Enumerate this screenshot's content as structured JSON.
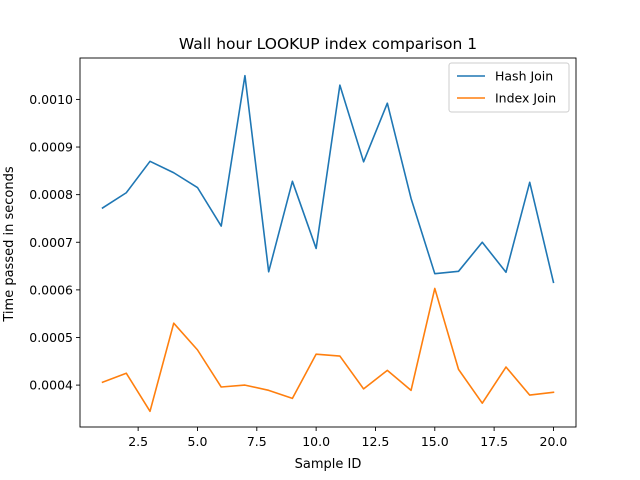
{
  "chart_data": {
    "type": "line",
    "title": "Wall hour LOOKUP index comparison 1",
    "xlabel": "Sample ID",
    "ylabel": "Time passed in seconds",
    "xlim": [
      0.05,
      20.95
    ],
    "ylim": [
      0.000312,
      0.001087
    ],
    "xticks": [
      2.5,
      5.0,
      7.5,
      10.0,
      12.5,
      15.0,
      17.5,
      20.0
    ],
    "xtick_labels": [
      "2.5",
      "5.0",
      "7.5",
      "10.0",
      "12.5",
      "15.0",
      "17.5",
      "20.0"
    ],
    "yticks": [
      0.0004,
      0.0005,
      0.0006,
      0.0007,
      0.0008,
      0.0009,
      0.001
    ],
    "ytick_labels": [
      "0.0004",
      "0.0005",
      "0.0006",
      "0.0007",
      "0.0008",
      "0.0009",
      "0.0010"
    ],
    "grid": false,
    "legend_position": "top-right",
    "x": [
      1,
      2,
      3,
      4,
      5,
      6,
      7,
      8,
      9,
      10,
      11,
      12,
      13,
      14,
      15,
      16,
      17,
      18,
      19,
      20
    ],
    "series": [
      {
        "name": "Hash Join",
        "color": "#1f77b4",
        "values": [
          0.000772,
          0.000804,
          0.00087,
          0.000846,
          0.000815,
          0.000734,
          0.00105,
          0.000638,
          0.000828,
          0.000687,
          0.00103,
          0.000869,
          0.000992,
          0.000792,
          0.000634,
          0.000639,
          0.0007,
          0.000637,
          0.000826,
          0.000616
        ]
      },
      {
        "name": "Index Join",
        "color": "#ff7f0e",
        "values": [
          0.000406,
          0.000425,
          0.000345,
          0.00053,
          0.000474,
          0.000396,
          0.0004,
          0.000389,
          0.000372,
          0.000465,
          0.000461,
          0.000392,
          0.000431,
          0.000389,
          0.000603,
          0.000433,
          0.000362,
          0.000438,
          0.000379,
          0.000385
        ]
      }
    ]
  }
}
